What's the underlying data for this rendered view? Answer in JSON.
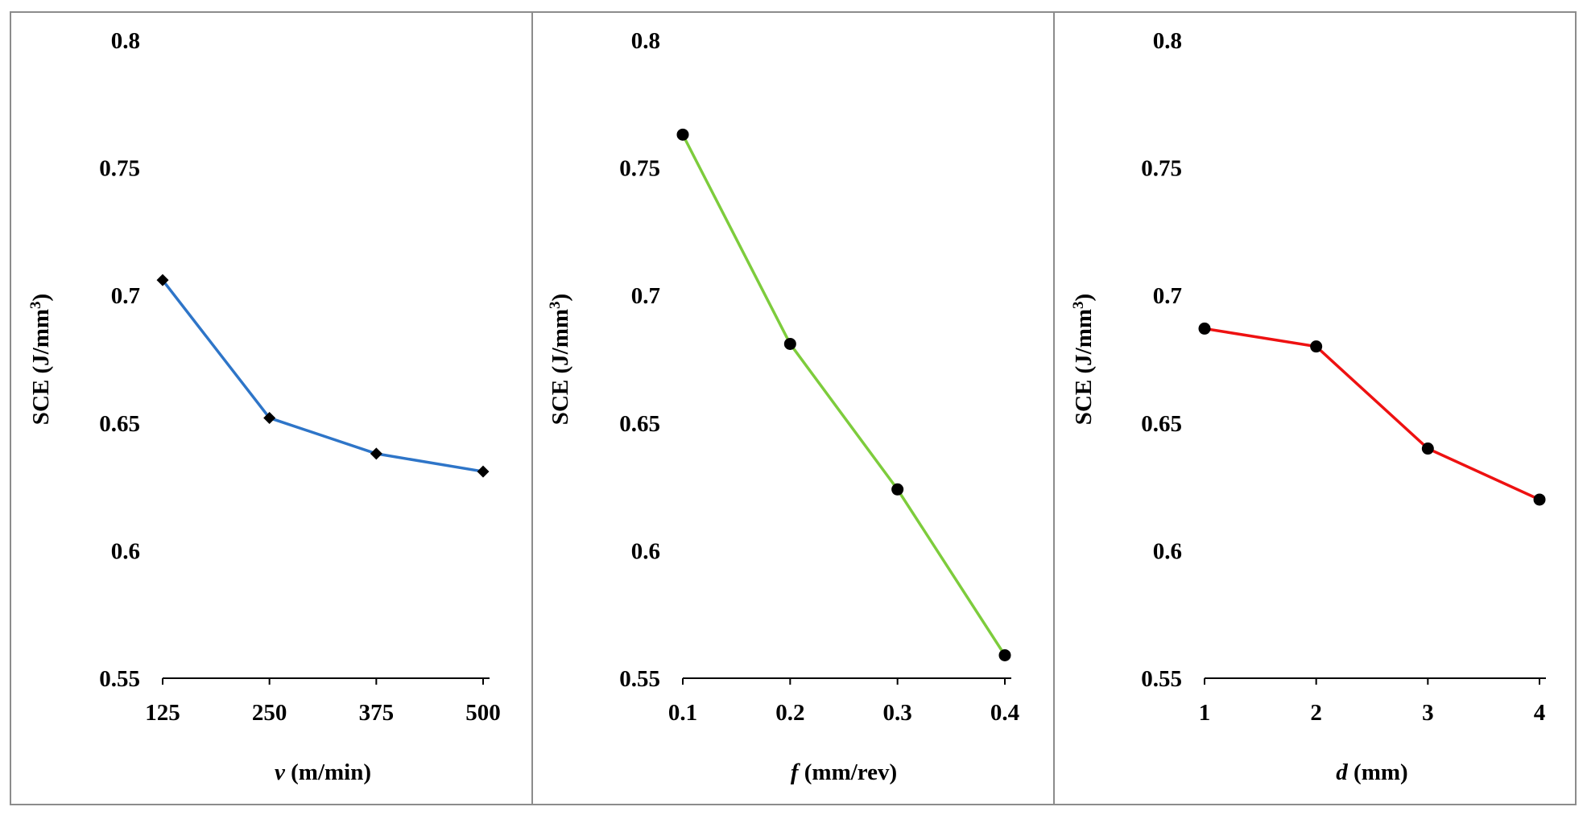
{
  "chart_data": [
    {
      "type": "line",
      "marker": "diamond",
      "color": "#2E75C8",
      "title": "",
      "x_categories": [
        "125",
        "250",
        "375",
        "500"
      ],
      "values": [
        0.706,
        0.652,
        0.638,
        0.631
      ],
      "ylabel": {
        "prefix": "SCE (J/mm",
        "sup": "3",
        "suffix": ")"
      },
      "xlabel": {
        "symbol": "v",
        "unit": " (m/min)"
      },
      "ylim": [
        0.55,
        0.8
      ],
      "yticks": [
        "0.55",
        "0.6",
        "0.65",
        "0.7",
        "0.75",
        "0.8"
      ],
      "grid": false
    },
    {
      "type": "line",
      "marker": "circle",
      "color": "#7DCC3C",
      "title": "",
      "x_categories": [
        "0.1",
        "0.2",
        "0.3",
        "0.4"
      ],
      "values": [
        0.763,
        0.681,
        0.624,
        0.559
      ],
      "ylabel": {
        "prefix": "SCE (J/mm",
        "sup": "3",
        "suffix": ")"
      },
      "xlabel": {
        "symbol": "f",
        "unit": " (mm/rev)"
      },
      "ylim": [
        0.55,
        0.8
      ],
      "yticks": [
        "0.55",
        "0.6",
        "0.65",
        "0.7",
        "0.75",
        "0.8"
      ],
      "grid": false
    },
    {
      "type": "line",
      "marker": "circle",
      "color": "#EE1111",
      "title": "",
      "x_categories": [
        "1",
        "2",
        "3",
        "4"
      ],
      "values": [
        0.687,
        0.68,
        0.64,
        0.62
      ],
      "ylabel": {
        "prefix": "SCE (J/mm",
        "sup": "3",
        "suffix": ")"
      },
      "xlabel": {
        "symbol": "d",
        "unit": " (mm)"
      },
      "ylim": [
        0.55,
        0.8
      ],
      "yticks": [
        "0.55",
        "0.6",
        "0.65",
        "0.7",
        "0.75",
        "0.8"
      ],
      "grid": false
    }
  ]
}
